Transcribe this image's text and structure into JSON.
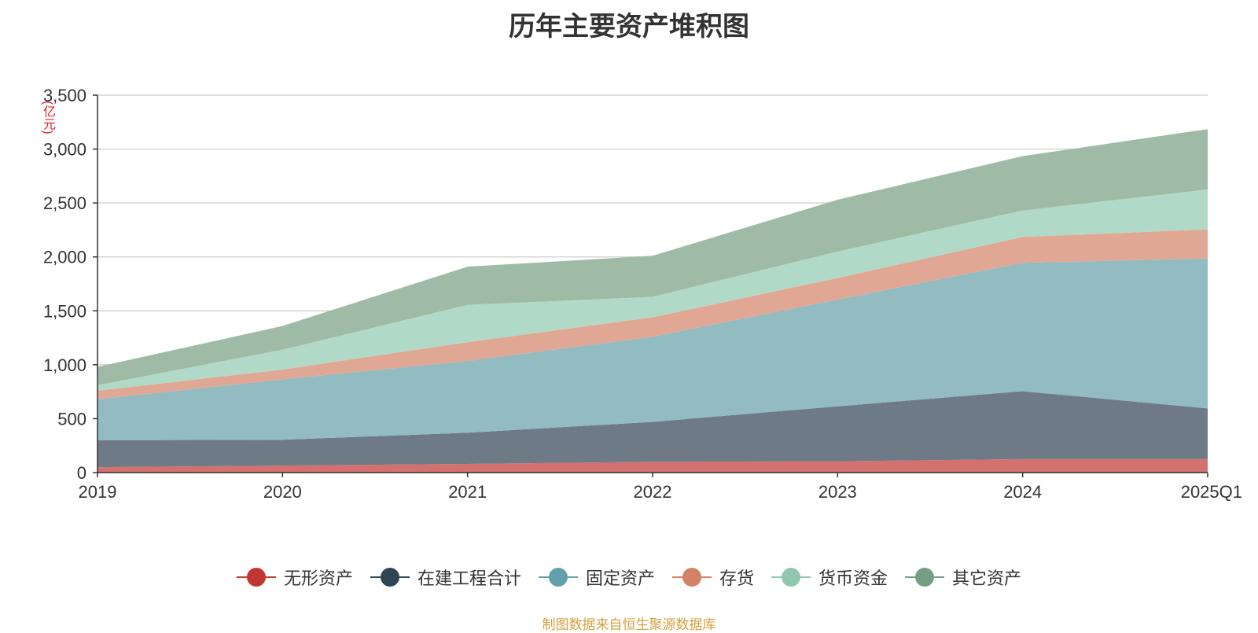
{
  "chart_data": {
    "type": "area",
    "stacked": true,
    "title": "历年主要资产堆积图",
    "ylabel": "亿元",
    "ylim": [
      0,
      3500
    ],
    "yticks": [
      0,
      500,
      1000,
      1500,
      2000,
      2500,
      3000,
      3500
    ],
    "ytick_labels": [
      "0",
      "500",
      "1,000",
      "1,500",
      "2,000",
      "2,500",
      "3,000",
      "3,500"
    ],
    "grid": true,
    "categories": [
      "2019",
      "2020",
      "2021",
      "2022",
      "2023",
      "2024",
      "2025Q1"
    ],
    "series": [
      {
        "name": "无形资产",
        "color": "#c23531",
        "fill": "#d4706e",
        "values": [
          50,
          65,
          80,
          100,
          105,
          125,
          125
        ]
      },
      {
        "name": "在建工程合计",
        "color": "#2f4554",
        "fill": "#6e7b86",
        "values": [
          250,
          240,
          290,
          370,
          510,
          630,
          470
        ]
      },
      {
        "name": "固定资产",
        "color": "#61a0a8",
        "fill": "#92bbc2",
        "values": [
          380,
          560,
          665,
          790,
          990,
          1190,
          1390
        ]
      },
      {
        "name": "存货",
        "color": "#d48265",
        "fill": "#e0a894",
        "values": [
          80,
          90,
          175,
          180,
          200,
          240,
          270
        ]
      },
      {
        "name": "货币资金",
        "color": "#91c7ae",
        "fill": "#b1d9c7",
        "values": [
          50,
          185,
          345,
          190,
          245,
          245,
          370
        ]
      },
      {
        "name": "其它资产",
        "color": "#749f83",
        "fill": "#9fbba6",
        "values": [
          170,
          220,
          355,
          380,
          480,
          505,
          560
        ]
      }
    ],
    "legend_position": "bottom-center",
    "source_note": "制图数据来自恒生聚源数据库"
  }
}
